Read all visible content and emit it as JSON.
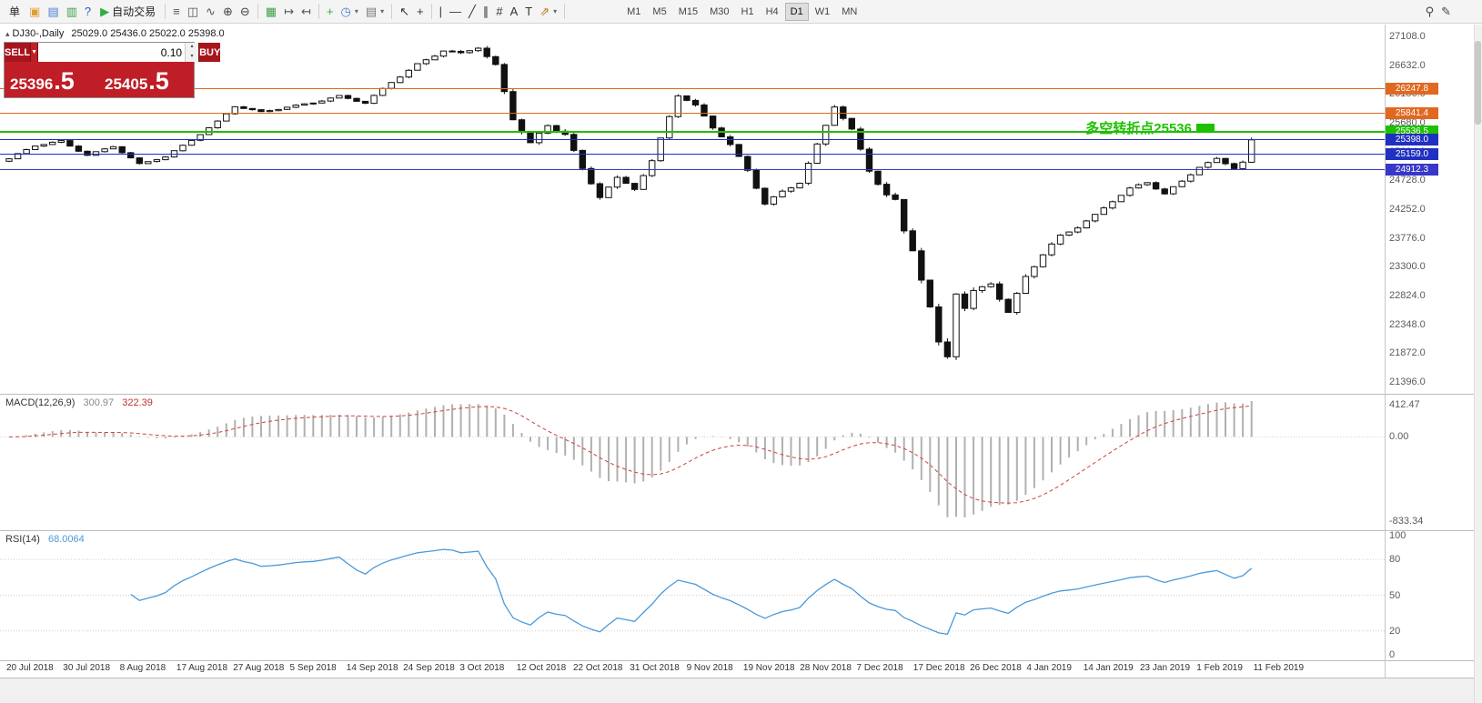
{
  "icons": {
    "caret_down": "▼",
    "spinner_up": "▴",
    "spinner_down": "▾",
    "symbol_marker": "▴"
  },
  "toolbar": {
    "left_items": [
      {
        "type": "btn",
        "name": "new-order-button",
        "label": "单"
      },
      {
        "type": "icon",
        "name": "new-order-icon",
        "glyph": "▣",
        "color": "#e0a030"
      },
      {
        "type": "icon",
        "name": "charts-window-icon",
        "glyph": "▤",
        "color": "#4a7fd4"
      },
      {
        "type": "icon",
        "name": "market-watch-icon",
        "glyph": "▥",
        "color": "#3fa14a"
      },
      {
        "type": "icon",
        "name": "help-icon",
        "glyph": "?",
        "color": "#2a5fc4"
      },
      {
        "type": "btn",
        "name": "auto-trading-button",
        "glyph": "▶",
        "color": "#2fae3f",
        "label": "自动交易"
      },
      {
        "type": "sep"
      },
      {
        "type": "icon",
        "name": "bar-chart-icon",
        "glyph": "≡",
        "color": "#555555"
      },
      {
        "type": "icon",
        "name": "candlestick-chart-icon",
        "glyph": "◫",
        "color": "#555555"
      },
      {
        "type": "icon",
        "name": "line-chart-icon",
        "glyph": "∿",
        "color": "#555555"
      },
      {
        "type": "icon",
        "name": "zoom-in-icon",
        "glyph": "⊕",
        "color": "#444444"
      },
      {
        "type": "icon",
        "name": "zoom-out-icon",
        "glyph": "⊖",
        "color": "#444444"
      },
      {
        "type": "sep"
      },
      {
        "type": "icon",
        "name": "tile-windows-icon",
        "glyph": "▦",
        "color": "#3fa14a"
      },
      {
        "type": "icon",
        "name": "auto-scroll-icon",
        "glyph": "↦",
        "color": "#555555"
      },
      {
        "type": "icon",
        "name": "chart-shift-icon",
        "glyph": "↤",
        "color": "#555555"
      },
      {
        "type": "sep"
      },
      {
        "type": "icon",
        "name": "add-indicator-icon",
        "glyph": "+",
        "color": "#2fae3f"
      },
      {
        "type": "icon",
        "name": "periods-icon",
        "glyph": "◷",
        "color": "#4a7fd4",
        "caret": true
      },
      {
        "type": "icon",
        "name": "templates-icon",
        "glyph": "▤",
        "color": "#777777",
        "caret": true
      },
      {
        "type": "sep"
      },
      {
        "type": "icon",
        "name": "cursor-icon",
        "glyph": "↖",
        "color": "#333333"
      },
      {
        "type": "icon",
        "name": "crosshair-icon",
        "glyph": "+",
        "color": "#333333"
      },
      {
        "type": "sep"
      },
      {
        "type": "icon",
        "name": "vertical-line-icon",
        "glyph": "|",
        "color": "#333333"
      },
      {
        "type": "icon",
        "name": "horizontal-line-icon",
        "glyph": "—",
        "color": "#333333"
      },
      {
        "type": "icon",
        "name": "trendline-icon",
        "glyph": "╱",
        "color": "#333333"
      },
      {
        "type": "icon",
        "name": "equidistant-channel-icon",
        "glyph": "∥",
        "color": "#333333"
      },
      {
        "type": "icon",
        "name": "fibonacci-icon",
        "glyph": "#",
        "color": "#333333"
      },
      {
        "type": "icon",
        "name": "text-icon",
        "glyph": "A",
        "color": "#333333"
      },
      {
        "type": "icon",
        "name": "text-label-icon",
        "glyph": "T",
        "color": "#333333"
      },
      {
        "type": "icon",
        "name": "arrows-icon",
        "glyph": "⇗",
        "color": "#b07818",
        "caret": true
      },
      {
        "type": "sep"
      }
    ],
    "timeframes": [
      {
        "label": "M1"
      },
      {
        "label": "M5"
      },
      {
        "label": "M15"
      },
      {
        "label": "M30"
      },
      {
        "label": "H1"
      },
      {
        "label": "H4"
      },
      {
        "label": "D1",
        "active": true
      },
      {
        "label": "W1"
      },
      {
        "label": "MN"
      }
    ],
    "right_items": [
      {
        "type": "icon",
        "name": "search-icon",
        "glyph": "⚲",
        "color": "#444444"
      },
      {
        "type": "icon",
        "name": "edit-icon",
        "glyph": "✎",
        "color": "#444444"
      }
    ]
  },
  "symbol_info": {
    "label": "DJ30-,Daily",
    "ohlc": "25029.0 25436.0 25022.0 25398.0"
  },
  "quote_panel": {
    "sell_label": "SELL",
    "buy_label": "BUY",
    "volume": "0.10",
    "sell_price": "25396",
    "sell_frac": ".5",
    "buy_price": "25405",
    "buy_frac": ".5"
  },
  "indicators": {
    "macd": {
      "name": "MACD(12,26,9)",
      "main": "300.97",
      "signal": "322.39",
      "axis": [
        "412.47",
        "0.00",
        "-833.34"
      ]
    },
    "rsi": {
      "name": "RSI(14)",
      "value": "68.0064",
      "axis": [
        100,
        80,
        50,
        20,
        0
      ],
      "levels": [
        80,
        50,
        20
      ]
    }
  },
  "chart_data": {
    "type": "candlestick",
    "symbol": "DJ30-",
    "timeframe": "Daily",
    "last_ohlc": {
      "open": 25029.0,
      "high": 25436.0,
      "low": 25022.0,
      "close": 25398.0
    },
    "candle_count": 144,
    "close_keypoints": [
      [
        0,
        25080
      ],
      [
        3,
        25300
      ],
      [
        6,
        25380
      ],
      [
        9,
        25150
      ],
      [
        12,
        25290
      ],
      [
        15,
        24990
      ],
      [
        18,
        25120
      ],
      [
        21,
        25400
      ],
      [
        24,
        25700
      ],
      [
        26,
        25950
      ],
      [
        29,
        25850
      ],
      [
        32,
        25940
      ],
      [
        35,
        26020
      ],
      [
        38,
        26120
      ],
      [
        41,
        26000
      ],
      [
        44,
        26350
      ],
      [
        47,
        26650
      ],
      [
        50,
        26880
      ],
      [
        52,
        26820
      ],
      [
        54,
        26920
      ],
      [
        56,
        26600
      ],
      [
        58,
        25750
      ],
      [
        60,
        25350
      ],
      [
        62,
        25650
      ],
      [
        64,
        25500
      ],
      [
        66,
        24900
      ],
      [
        68,
        24450
      ],
      [
        70,
        24750
      ],
      [
        72,
        24600
      ],
      [
        74,
        25050
      ],
      [
        76,
        25800
      ],
      [
        77,
        26150
      ],
      [
        79,
        25950
      ],
      [
        81,
        25600
      ],
      [
        83,
        25300
      ],
      [
        85,
        24900
      ],
      [
        87,
        24350
      ],
      [
        89,
        24550
      ],
      [
        91,
        24700
      ],
      [
        93,
        25300
      ],
      [
        95,
        25950
      ],
      [
        97,
        25550
      ],
      [
        99,
        24900
      ],
      [
        101,
        24500
      ],
      [
        102,
        24400
      ],
      [
        103,
        23900
      ],
      [
        104,
        23600
      ],
      [
        105,
        23100
      ],
      [
        106,
        22600
      ],
      [
        107,
        22000
      ],
      [
        108,
        21800
      ],
      [
        109,
        22870
      ],
      [
        110,
        22600
      ],
      [
        111,
        22870
      ],
      [
        113,
        23050
      ],
      [
        115,
        22550
      ],
      [
        117,
        23150
      ],
      [
        119,
        23500
      ],
      [
        121,
        23800
      ],
      [
        123,
        23950
      ],
      [
        125,
        24150
      ],
      [
        127,
        24400
      ],
      [
        129,
        24600
      ],
      [
        131,
        24700
      ],
      [
        133,
        24500
      ],
      [
        135,
        24700
      ],
      [
        137,
        24950
      ],
      [
        139,
        25080
      ],
      [
        141,
        24950
      ],
      [
        142,
        25029
      ],
      [
        143,
        25398
      ]
    ],
    "volatility_keypoints": [
      [
        0,
        55
      ],
      [
        20,
        50
      ],
      [
        40,
        55
      ],
      [
        50,
        75
      ],
      [
        54,
        95
      ],
      [
        56,
        150
      ],
      [
        60,
        115
      ],
      [
        66,
        125
      ],
      [
        72,
        95
      ],
      [
        78,
        100
      ],
      [
        84,
        105
      ],
      [
        90,
        95
      ],
      [
        95,
        115
      ],
      [
        100,
        130
      ],
      [
        104,
        160
      ],
      [
        107,
        210
      ],
      [
        109,
        230
      ],
      [
        112,
        150
      ],
      [
        116,
        130
      ],
      [
        122,
        90
      ],
      [
        130,
        80
      ],
      [
        138,
        75
      ],
      [
        142,
        95
      ],
      [
        143,
        100
      ]
    ],
    "price_axis": {
      "labels": [
        27108.0,
        26632.0,
        26156.0,
        25680.0,
        25204.0,
        24728.0,
        24252.0,
        23776.0,
        23300.0,
        22824.0,
        22348.0,
        21872.0,
        21396.0
      ]
    },
    "lines": [
      {
        "price": 26247.8,
        "badge": "26247.8",
        "color": "#e06820",
        "width": 1
      },
      {
        "price": 25841.4,
        "badge": "25841.4",
        "color": "#e06820",
        "width": 1
      },
      {
        "price": 25536.5,
        "badge": "25536.5",
        "color": "#1fc000",
        "width": 2
      },
      {
        "price": 25398.0,
        "badge": "25398.0",
        "color": "#2030c0",
        "width": 1
      },
      {
        "price": 25159.0,
        "badge": "25159.0",
        "color": "#2030c0",
        "width": 1
      },
      {
        "price": 24912.3,
        "badge": "24912.3",
        "color": "#3838c8",
        "width": 1
      }
    ],
    "annotation": {
      "text": "多空转折点25536",
      "color": "#1fc000",
      "marker_color": "#1fc000"
    },
    "time_axis": {
      "labels": [
        "20 Jul 2018",
        "30 Jul 2018",
        "8 Aug 2018",
        "17 Aug 2018",
        "27 Aug 2018",
        "5 Sep 2018",
        "14 Sep 2018",
        "24 Sep 2018",
        "3 Oct 2018",
        "12 Oct 2018",
        "22 Oct 2018",
        "31 Oct 2018",
        "9 Nov 2018",
        "19 Nov 2018",
        "28 Nov 2018",
        "7 Dec 2018",
        "17 Dec 2018",
        "26 Dec 2018",
        "4 Jan 2019",
        "14 Jan 2019",
        "23 Jan 2019",
        "1 Feb 2019",
        "11 Feb 2019"
      ]
    }
  }
}
